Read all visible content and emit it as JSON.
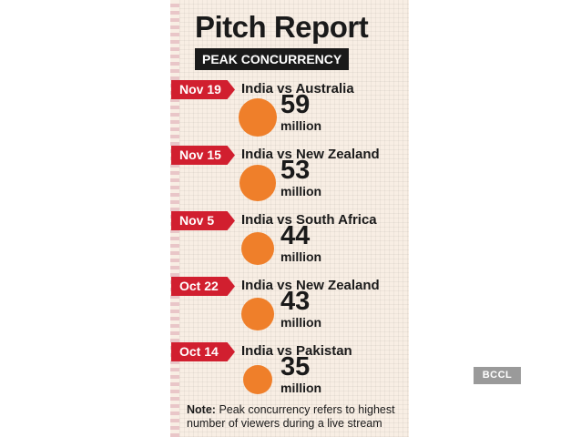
{
  "title": "Pitch Report",
  "subtitle": "PEAK CONCURRENCY",
  "note": {
    "label": "Note:",
    "text": "Peak concurrency refers to highest number of viewers during a live stream"
  },
  "watermark": "BCCL",
  "colors": {
    "background": "#f8eee4",
    "date_tag": "#d11f2f",
    "circle": "#ef7f2a",
    "text": "#1a1a1a"
  },
  "chart_data": {
    "type": "bubble",
    "title": "Pitch Report",
    "subtitle": "PEAK CONCURRENCY",
    "unit": "million",
    "rows": [
      {
        "date": "Nov 19",
        "match": "India vs Australia",
        "value": 59,
        "unit": "million"
      },
      {
        "date": "Nov 15",
        "match": "India vs New Zealand",
        "value": 53,
        "unit": "million"
      },
      {
        "date": "Nov 5",
        "match": "India vs South Africa",
        "value": 44,
        "unit": "million"
      },
      {
        "date": "Oct 22",
        "match": "India vs New Zealand",
        "value": 43,
        "unit": "million"
      },
      {
        "date": "Oct 14",
        "match": "India vs Pakistan",
        "value": 35,
        "unit": "million"
      }
    ]
  }
}
